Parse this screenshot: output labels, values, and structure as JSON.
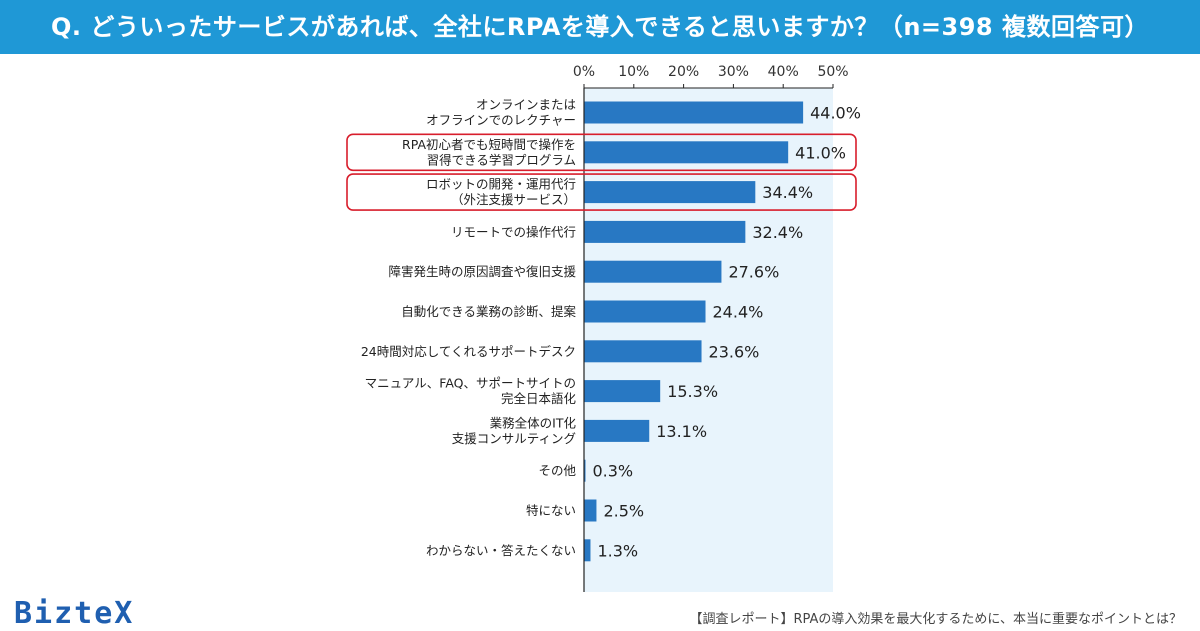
{
  "header": {
    "question": "Q. どういったサービスがあれば、全社にRPAを導入できると思いますか？（n=398 複数回答可）"
  },
  "chart_data": {
    "type": "bar",
    "orientation": "horizontal",
    "title": "Q. どういったサービスがあれば、全社にRPAを導入できると思いますか？（n=398 複数回答可）",
    "xlim": [
      0,
      50
    ],
    "ticks": [
      "0%",
      "10%",
      "20%",
      "30%",
      "40%",
      "50%"
    ],
    "tick_values": [
      0,
      10,
      20,
      30,
      40,
      50
    ],
    "categories": [
      [
        "オンラインまたは",
        "オフラインでのレクチャー"
      ],
      [
        "RPA初心者でも短時間で操作を",
        "習得できる学習プログラム"
      ],
      [
        "ロボットの開発・運用代行",
        "（外注支援サービス）"
      ],
      [
        "リモートでの操作代行"
      ],
      [
        "障害発生時の原因調査や復旧支援"
      ],
      [
        "自動化できる業務の診断、提案"
      ],
      [
        "24時間対応してくれるサポートデスク"
      ],
      [
        "マニュアル、FAQ、サポートサイトの",
        "完全日本語化"
      ],
      [
        "業務全体のIT化",
        "支援コンサルティング"
      ],
      [
        "その他"
      ],
      [
        "特にない"
      ],
      [
        "わからない・答えたくない"
      ]
    ],
    "values": [
      44.0,
      41.0,
      34.4,
      32.4,
      27.6,
      24.4,
      23.6,
      15.3,
      13.1,
      0.3,
      2.5,
      1.3
    ],
    "value_labels": [
      "44.0%",
      "41.0%",
      "34.4%",
      "32.4%",
      "27.6%",
      "24.4%",
      "23.6%",
      "15.3%",
      "13.1%",
      "0.3%",
      "2.5%",
      "1.3%"
    ],
    "highlighted": [
      1,
      2
    ],
    "bar_color": "#2878c3",
    "highlight_color": "#d81e2c",
    "background_color": "#e8f4fc",
    "grid": false
  },
  "branding": {
    "logo": "BizteX",
    "footer": "【調査レポート】RPAの導入効果を最大化するために、本当に重要なポイントとは？"
  }
}
